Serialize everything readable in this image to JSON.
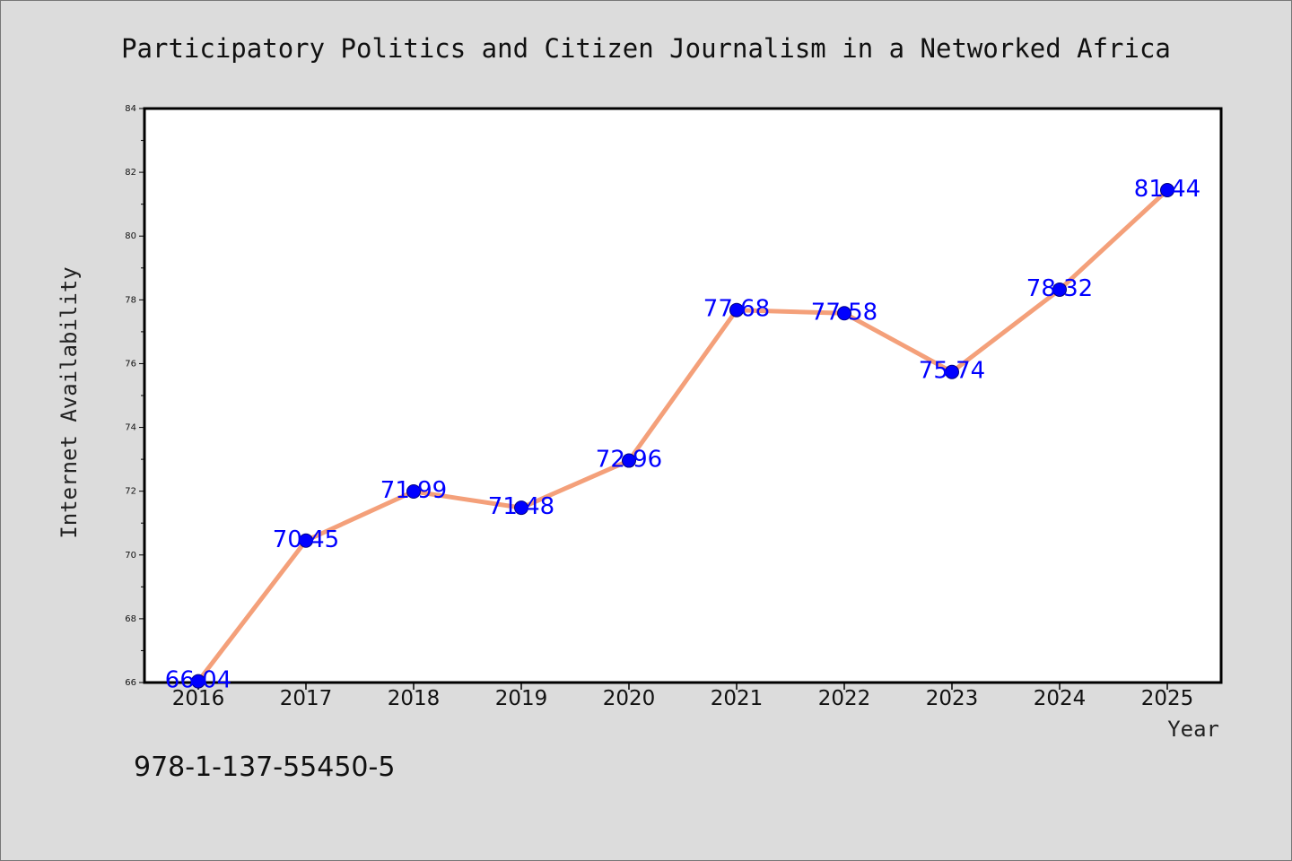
{
  "colors": {
    "background": "#dcdcdc",
    "plot_background": "#ffffff",
    "line": "#f4a07a",
    "marker_fill": "#0000ff",
    "marker_edge": "#000080",
    "data_label": "#0000ff",
    "axis": "#000000"
  },
  "isbn": "978-1-137-55450-5",
  "chart_data": {
    "type": "line",
    "title": "Participatory Politics and Citizen Journalism in a Networked Africa",
    "xlabel": "Year",
    "ylabel": "Internet Availability",
    "categories": [
      "2016",
      "2017",
      "2018",
      "2019",
      "2020",
      "2021",
      "2022",
      "2023",
      "2024",
      "2025"
    ],
    "series": [
      {
        "values": [
          66.04,
          70.45,
          71.99,
          71.48,
          72.96,
          77.68,
          77.58,
          75.74,
          78.32,
          81.44
        ],
        "labels": [
          "66.04",
          "70.45",
          "71.99",
          "71.48",
          "72.96",
          "77.68",
          "77.58",
          "75.74",
          "78.32",
          "81.44"
        ]
      }
    ],
    "ylim": [
      66,
      84
    ],
    "yticks": [
      "66",
      "68",
      "70",
      "72",
      "74",
      "76",
      "78",
      "80",
      "82",
      "84"
    ],
    "grid": false,
    "legend": "none"
  }
}
